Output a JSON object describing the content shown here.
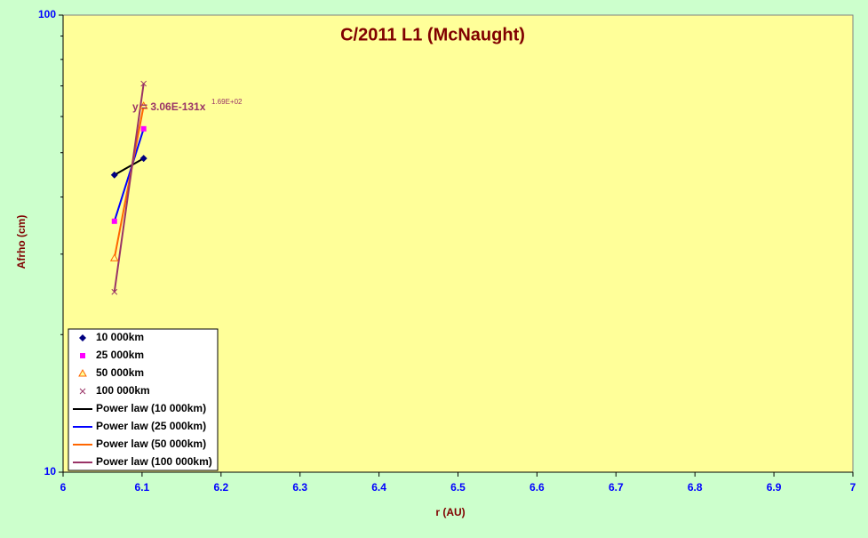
{
  "chart_data": {
    "type": "scatter",
    "title": "C/2011 L1 (McNaught)",
    "x_label": "r (AU)",
    "y_label": "Afrho (cm)",
    "xlim": [
      6,
      7
    ],
    "xticks": [
      6,
      6.1,
      6.2,
      6.3,
      6.4,
      6.5,
      6.6,
      6.7,
      6.8,
      6.9,
      7
    ],
    "ylim": [
      10,
      100
    ],
    "yticks": [
      10,
      100
    ],
    "yminorticks": [
      20,
      30,
      40,
      50,
      60,
      70,
      80,
      90
    ],
    "yscale": "log",
    "grid": false,
    "legend": "lower left",
    "series": [
      {
        "name": "10 000km",
        "color": "#000080",
        "marker": "diamond",
        "x": [
          6.065,
          6.102
        ],
        "values": [
          44.7,
          48.6
        ]
      },
      {
        "name": "25 000km",
        "color": "#ff00ff",
        "marker": "square",
        "x": [
          6.065,
          6.102
        ],
        "values": [
          35.4,
          56.4
        ]
      },
      {
        "name": "50 000km",
        "color": "#ff6600",
        "marker": "triangle",
        "x": [
          6.065,
          6.102
        ],
        "values": [
          29.4,
          63.3
        ]
      },
      {
        "name": "100 000km",
        "color": "#993366",
        "marker": "cross",
        "x": [
          6.065,
          6.102
        ],
        "values": [
          24.8,
          70.8
        ]
      },
      {
        "name": "Power law (10 000km)",
        "color": "#000000",
        "marker": "line",
        "x": [
          6.065,
          6.102
        ],
        "values": [
          44.7,
          48.6
        ]
      },
      {
        "name": "Power law (25 000km)",
        "color": "#0000ff",
        "marker": "line",
        "x": [
          6.065,
          6.102
        ],
        "values": [
          35.4,
          56.4
        ]
      },
      {
        "name": "Power law (50 000km)",
        "color": "#ff6600",
        "marker": "line",
        "x": [
          6.065,
          6.102
        ],
        "values": [
          29.4,
          63.3
        ]
      },
      {
        "name": "Power law (100 000km)",
        "color": "#993366",
        "marker": "line",
        "x": [
          6.065,
          6.102
        ],
        "values": [
          24.8,
          70.8
        ]
      }
    ],
    "annotations": [
      {
        "text": "y = 3.06E-131x",
        "sup": "1.69E+02",
        "color": "#993366"
      }
    ]
  }
}
